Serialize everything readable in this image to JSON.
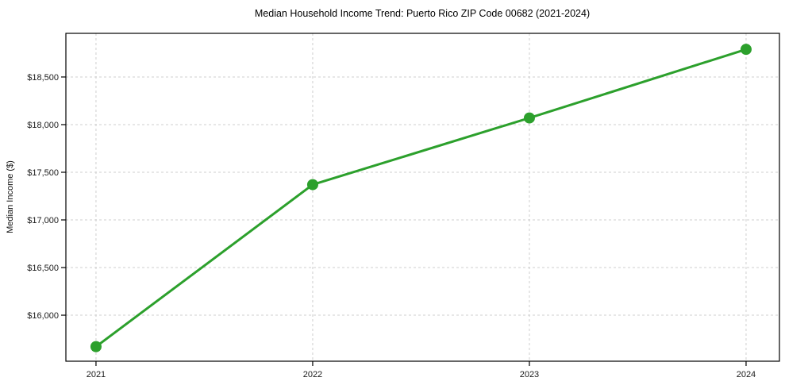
{
  "chart_data": {
    "type": "line",
    "title": "Median Household Income Trend: Puerto Rico ZIP Code 00682 (2021-2024)",
    "xlabel": "",
    "ylabel": "Median Income ($)",
    "x": [
      2021,
      2022,
      2023,
      2024
    ],
    "x_tick_labels": [
      "2021",
      "2022",
      "2023",
      "2024"
    ],
    "series": [
      {
        "name": "Median Household Income",
        "values": [
          15670,
          17370,
          18070,
          18790
        ],
        "color": "#2ca02c",
        "marker": "circle",
        "line_width": 3,
        "marker_radius": 7
      }
    ],
    "y_ticks": [
      16000,
      16500,
      17000,
      17500,
      18000,
      18500
    ],
    "y_tick_labels": [
      "$16,000",
      "$16,500",
      "$17,000",
      "$17,500",
      "$18,000",
      "$18,500"
    ],
    "xlim": [
      2020.861,
      2024.154
    ],
    "ylim": [
      15517,
      18958
    ],
    "grid": true,
    "grid_style": "dashed",
    "grid_color": "#cfcfcf",
    "legend": false,
    "background": "#ffffff",
    "spine_color": "#000000"
  }
}
